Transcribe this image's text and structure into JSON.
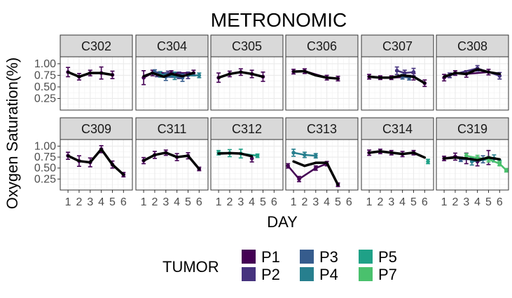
{
  "chart_data": {
    "type": "line",
    "title": "METRONOMIC",
    "xlabel": "DAY",
    "ylabel": "Oxygen Saturation(%)",
    "x_ticks": [
      "1",
      "2",
      "3",
      "4",
      "5",
      "6"
    ],
    "xlim": [
      0.3,
      6.8
    ],
    "y_ticks": [
      "0.25",
      "0.50",
      "0.75",
      "1.00"
    ],
    "ylim": [
      0.0,
      1.15
    ],
    "grid": true,
    "legend": {
      "title": "TUMOR",
      "position": "bottom",
      "entries": [
        {
          "name": "P1",
          "color": "#440154"
        },
        {
          "name": "P2",
          "color": "#46337e"
        },
        {
          "name": "P3",
          "color": "#365c8d"
        },
        {
          "name": "P4",
          "color": "#277f8e"
        },
        {
          "name": "P5",
          "color": "#1fa187"
        },
        {
          "name": "P7",
          "color": "#4ac16d"
        }
      ]
    },
    "panels": [
      {
        "name": "C302",
        "mean": [
          [
            1,
            0.82
          ],
          [
            2,
            0.72
          ],
          [
            3,
            0.8
          ],
          [
            4,
            0.8
          ],
          [
            5,
            0.76
          ]
        ],
        "series": [
          {
            "tumor": "P1",
            "points": [
              [
                1,
                0.82,
                0.1
              ],
              [
                2,
                0.72,
                0.07
              ],
              [
                3,
                0.8,
                0.06
              ],
              [
                4,
                0.8,
                0.13
              ],
              [
                5,
                0.76,
                0.08
              ]
            ]
          }
        ]
      },
      {
        "name": "C304",
        "mean": [
          [
            1,
            0.73
          ],
          [
            1.8,
            0.8
          ],
          [
            2.8,
            0.72
          ],
          [
            3.5,
            0.78
          ],
          [
            4.5,
            0.73
          ],
          [
            5.5,
            0.8
          ]
        ],
        "series": [
          {
            "tumor": "P1",
            "points": [
              [
                1,
                0.7,
                0.15
              ],
              [
                1.8,
                0.8,
                0.06
              ],
              [
                3.5,
                0.8,
                0.05
              ],
              [
                5.5,
                0.8,
                0.06
              ]
            ]
          },
          {
            "tumor": "P2",
            "points": [
              [
                2.2,
                0.77,
                0.05
              ],
              [
                3.2,
                0.78,
                0.06
              ],
              [
                4.2,
                0.75,
                0.07
              ],
              [
                5.0,
                0.75,
                0.07
              ]
            ]
          },
          {
            "tumor": "P3",
            "points": [
              [
                2.0,
                0.82,
                0.05
              ],
              [
                3.0,
                0.72,
                0.08
              ],
              [
                4.5,
                0.7,
                0.08
              ]
            ]
          },
          {
            "tumor": "P4",
            "points": [
              [
                2.5,
                0.77,
                0.06
              ],
              [
                3.8,
                0.74,
                0.08
              ],
              [
                6.0,
                0.75,
                0.05
              ]
            ]
          }
        ]
      },
      {
        "name": "C305",
        "mean": [
          [
            1,
            0.7
          ],
          [
            2,
            0.78
          ],
          [
            3,
            0.82
          ],
          [
            4,
            0.78
          ],
          [
            5,
            0.72
          ]
        ],
        "series": [
          {
            "tumor": "P1",
            "points": [
              [
                1,
                0.7,
                0.1
              ],
              [
                2,
                0.78,
                0.06
              ],
              [
                3,
                0.82,
                0.07
              ],
              [
                4,
                0.78,
                0.08
              ],
              [
                5,
                0.72,
                0.1
              ]
            ]
          }
        ]
      },
      {
        "name": "C306",
        "mean": [
          [
            1,
            0.83
          ],
          [
            2,
            0.84
          ],
          [
            3,
            0.75
          ],
          [
            4,
            0.7
          ],
          [
            5,
            0.68
          ]
        ],
        "series": [
          {
            "tumor": "P1",
            "points": [
              [
                1,
                0.83,
                0.05
              ],
              [
                2,
                0.84,
                0.05
              ],
              [
                4,
                0.7,
                0.05
              ],
              [
                5,
                0.68,
                0.05
              ]
            ]
          }
        ]
      },
      {
        "name": "C307",
        "mean": [
          [
            1,
            0.72
          ],
          [
            2,
            0.7
          ],
          [
            3,
            0.7
          ],
          [
            4,
            0.75
          ],
          [
            5,
            0.72
          ],
          [
            6,
            0.58
          ]
        ],
        "series": [
          {
            "tumor": "P1",
            "points": [
              [
                1,
                0.72,
                0.05
              ],
              [
                2,
                0.7,
                0.04
              ],
              [
                3,
                0.7,
                0.04
              ],
              [
                5,
                0.72,
                0.07
              ],
              [
                6,
                0.58,
                0.07
              ]
            ]
          },
          {
            "tumor": "P2",
            "points": [
              [
                3.5,
                0.85,
                0.08
              ],
              [
                4.2,
                0.8,
                0.06
              ],
              [
                5.0,
                0.82,
                0.08
              ]
            ]
          },
          {
            "tumor": "P3",
            "points": [
              [
                4.0,
                0.72,
                0.05
              ],
              [
                4.6,
                0.7,
                0.05
              ]
            ]
          }
        ]
      },
      {
        "name": "C308",
        "mean": [
          [
            1,
            0.72
          ],
          [
            2,
            0.8
          ],
          [
            3,
            0.78
          ],
          [
            4,
            0.88
          ],
          [
            5,
            0.82
          ],
          [
            6,
            0.78
          ]
        ],
        "series": [
          {
            "tumor": "P1",
            "points": [
              [
                1,
                0.7,
                0.07
              ],
              [
                2,
                0.8,
                0.05
              ],
              [
                3,
                0.78,
                0.07
              ],
              [
                5,
                0.82,
                0.06
              ]
            ]
          },
          {
            "tumor": "P2",
            "points": [
              [
                1.5,
                0.75,
                0.05
              ],
              [
                4,
                0.9,
                0.06
              ],
              [
                6.0,
                0.74,
                0.07
              ]
            ]
          }
        ]
      },
      {
        "name": "C309",
        "mean": [
          [
            1,
            0.78
          ],
          [
            2,
            0.66
          ],
          [
            3,
            0.63
          ],
          [
            4,
            0.93
          ],
          [
            5,
            0.58
          ],
          [
            6,
            0.35
          ]
        ],
        "series": [
          {
            "tumor": "P1",
            "points": [
              [
                1,
                0.78,
                0.08
              ],
              [
                2,
                0.66,
                0.12
              ],
              [
                3,
                0.63,
                0.1
              ],
              [
                4,
                0.93,
                0.08
              ],
              [
                5,
                0.58,
                0.08
              ],
              [
                6,
                0.35,
                0.05
              ]
            ]
          }
        ]
      },
      {
        "name": "C311",
        "mean": [
          [
            1,
            0.67
          ],
          [
            2,
            0.8
          ],
          [
            3,
            0.85
          ],
          [
            4,
            0.75
          ],
          [
            5,
            0.78
          ],
          [
            6,
            0.48
          ]
        ],
        "series": [
          {
            "tumor": "P1",
            "points": [
              [
                1,
                0.67,
                0.07
              ],
              [
                2,
                0.8,
                0.08
              ],
              [
                3,
                0.85,
                0.06
              ],
              [
                4,
                0.75,
                0.08
              ],
              [
                5,
                0.78,
                0.07
              ],
              [
                6,
                0.48,
                0.04
              ]
            ]
          }
        ]
      },
      {
        "name": "C312",
        "mean": [
          [
            1,
            0.83
          ],
          [
            2,
            0.84
          ],
          [
            3,
            0.83
          ],
          [
            4,
            0.77
          ]
        ],
        "series": [
          {
            "tumor": "P1",
            "points": [
              [
                4,
                0.72,
                0.08
              ]
            ]
          },
          {
            "tumor": "P5",
            "points": [
              [
                1,
                0.85,
                0.05
              ],
              [
                2,
                0.84,
                0.08
              ],
              [
                3,
                0.83,
                0.1
              ],
              [
                4.5,
                0.78,
                0.04
              ]
            ]
          }
        ]
      },
      {
        "name": "C313",
        "mean": [
          [
            1,
            0.65
          ],
          [
            2,
            0.55
          ],
          [
            3,
            0.62
          ],
          [
            4,
            0.62
          ],
          [
            5,
            0.12
          ]
        ],
        "series": [
          {
            "tumor": "P1",
            "points": [
              [
                0.5,
                0.55,
                0.05
              ],
              [
                1.5,
                0.25,
                0.06
              ],
              [
                3,
                0.5,
                0.05
              ],
              [
                4,
                0.6,
                0.05
              ],
              [
                5,
                0.12,
                0.04
              ]
            ]
          },
          {
            "tumor": "P4",
            "points": [
              [
                1,
                0.85,
                0.08
              ],
              [
                2,
                0.8,
                0.06
              ],
              [
                3,
                0.78,
                0.05
              ]
            ]
          }
        ]
      },
      {
        "name": "C314",
        "mean": [
          [
            1,
            0.85
          ],
          [
            2,
            0.88
          ],
          [
            3,
            0.85
          ],
          [
            4,
            0.82
          ],
          [
            5,
            0.85
          ],
          [
            6,
            0.74
          ]
        ],
        "series": [
          {
            "tumor": "P1",
            "points": [
              [
                1,
                0.85,
                0.06
              ],
              [
                2,
                0.88,
                0.05
              ],
              [
                3,
                0.85,
                0.05
              ],
              [
                4,
                0.82,
                0.06
              ],
              [
                5,
                0.85,
                0.05
              ]
            ]
          },
          {
            "tumor": "P5",
            "points": [
              [
                6.3,
                0.65,
                0.05
              ]
            ]
          }
        ]
      },
      {
        "name": "C319",
        "mean": [
          [
            1,
            0.72
          ],
          [
            2,
            0.74
          ],
          [
            3,
            0.72
          ],
          [
            4,
            0.68
          ],
          [
            5,
            0.74
          ],
          [
            6,
            0.7
          ]
        ],
        "series": [
          {
            "tumor": "P1",
            "points": [
              [
                1,
                0.72,
                0.05
              ],
              [
                2,
                0.76,
                0.08
              ],
              [
                3,
                0.72,
                0.12
              ],
              [
                4,
                0.65,
                0.1
              ],
              [
                5,
                0.74,
                0.16
              ]
            ]
          },
          {
            "tumor": "P3",
            "points": [
              [
                2.5,
                0.7,
                0.05
              ],
              [
                4.5,
                0.7,
                0.08
              ]
            ]
          },
          {
            "tumor": "P4",
            "points": [
              [
                3.5,
                0.65,
                0.08
              ],
              [
                5.5,
                0.72,
                0.08
              ]
            ]
          },
          {
            "tumor": "P5",
            "points": [
              [
                6.0,
                0.62,
                0.06
              ]
            ]
          },
          {
            "tumor": "P7",
            "points": [
              [
                3,
                0.78,
                0.05
              ],
              [
                4,
                0.73,
                0.06
              ],
              [
                5,
                0.7,
                0.06
              ],
              [
                6,
                0.6,
                0.05
              ],
              [
                6.6,
                0.45,
                0.04
              ]
            ]
          }
        ]
      }
    ]
  }
}
